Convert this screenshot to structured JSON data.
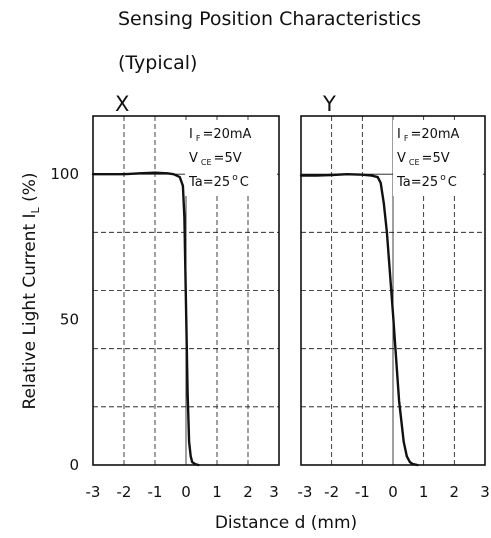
{
  "title": "Sensing Position Characteristics",
  "subtitle": "(Typical)",
  "colors": {
    "curve": "#111111",
    "grid": "#111111",
    "background": "#ffffff"
  },
  "chart_data": [
    {
      "type": "line",
      "panel_label": "X",
      "xlabel": "Distance d (mm)",
      "ylabel": "Relative Light Current I_L (%)",
      "xlim": [
        -3,
        3
      ],
      "ylim": [
        0,
        120
      ],
      "xticks": [
        "-3",
        "-2",
        "-1",
        "0",
        "1",
        "2",
        "3"
      ],
      "yticks": [
        "0",
        "50",
        "100"
      ],
      "grid": true,
      "conditions": [
        {
          "symbol": "I",
          "sub": "F",
          "value": "=20mA"
        },
        {
          "symbol": "V",
          "sub": "CE",
          "value": "=5V"
        },
        {
          "symbol": "Ta=25",
          "sup": "o",
          "value": "C"
        }
      ],
      "series": [
        {
          "x": [
            -3,
            -2.5,
            -2,
            -1.5,
            -1,
            -0.6,
            -0.4,
            -0.2,
            -0.1,
            -0.05,
            0,
            0.05,
            0.1,
            0.15,
            0.2,
            0.3,
            0.4
          ],
          "y": [
            100,
            100,
            100,
            100.3,
            100.5,
            100.3,
            100,
            99,
            96,
            85,
            55,
            25,
            8,
            3,
            1,
            0.3,
            0
          ]
        }
      ]
    },
    {
      "type": "line",
      "panel_label": "Y",
      "xlabel": "",
      "ylabel": "",
      "xlim": [
        -3,
        3
      ],
      "ylim": [
        0,
        120
      ],
      "xticks": [
        "-3",
        "-2",
        "-1",
        "0",
        "1",
        "2",
        "3"
      ],
      "yticks": [],
      "grid": true,
      "conditions": [
        {
          "symbol": "I",
          "sub": "F",
          "value": "=20mA"
        },
        {
          "symbol": "V",
          "sub": "CE",
          "value": "=5V"
        },
        {
          "symbol": "Ta=25",
          "sup": "o",
          "value": "C"
        }
      ],
      "series": [
        {
          "x": [
            -3,
            -2.5,
            -2,
            -1.5,
            -1,
            -0.7,
            -0.5,
            -0.4,
            -0.3,
            -0.2,
            0,
            0.2,
            0.35,
            0.45,
            0.55,
            0.65,
            0.8
          ],
          "y": [
            99.5,
            99.5,
            99.7,
            100,
            99.8,
            99.5,
            99,
            97,
            90,
            80,
            52,
            22,
            8,
            3,
            1,
            0.3,
            0
          ]
        }
      ]
    }
  ]
}
